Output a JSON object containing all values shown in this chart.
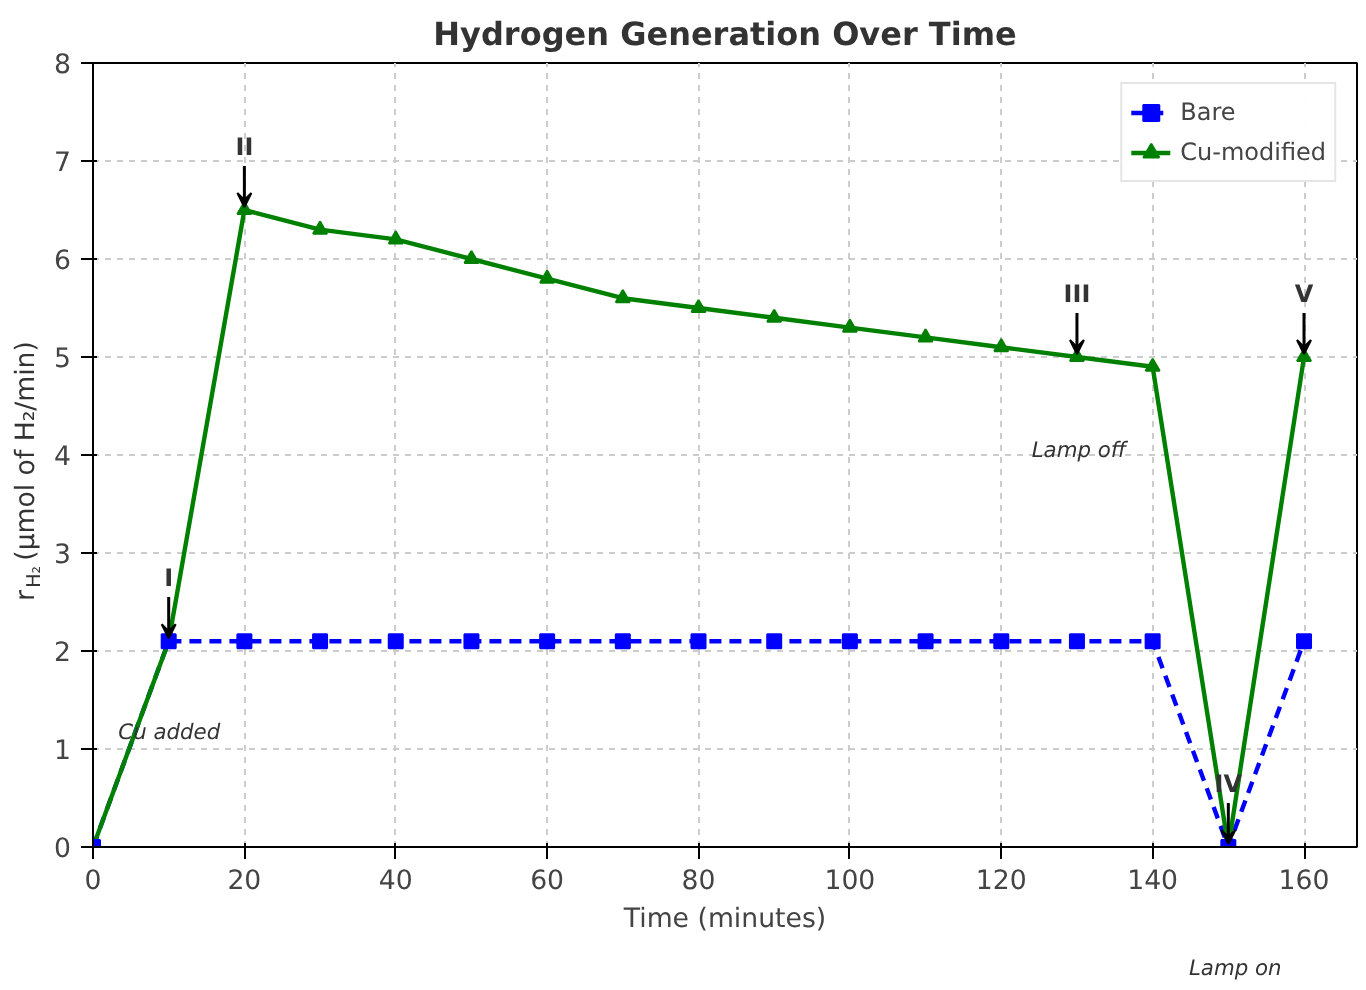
{
  "chart_data": {
    "type": "line",
    "title": "Hydrogen Generation Over Time",
    "xlabel": "Time (minutes)",
    "ylabel": "r$_{H₂}$ (μmol of H₂/min)",
    "x": [
      0,
      10,
      20,
      30,
      40,
      50,
      60,
      70,
      80,
      90,
      100,
      110,
      120,
      130,
      140,
      150,
      160
    ],
    "series": [
      {
        "name": "Bare",
        "color": "#0000ff",
        "marker": "square",
        "line_style": "dashed",
        "values": [
          0,
          2.1,
          2.1,
          2.1,
          2.1,
          2.1,
          2.1,
          2.1,
          2.1,
          2.1,
          2.1,
          2.1,
          2.1,
          2.1,
          2.1,
          0,
          2.1
        ]
      },
      {
        "name": "Cu-modified",
        "color": "#008000",
        "marker": "triangle",
        "line_style": "solid",
        "values": [
          0,
          2.1,
          6.5,
          6.3,
          6.2,
          6.0,
          5.8,
          5.6,
          5.5,
          5.4,
          5.3,
          5.2,
          5.1,
          5.0,
          4.9,
          0,
          5.0
        ]
      }
    ],
    "xlim": [
      0,
      167
    ],
    "ylim": [
      0,
      8
    ],
    "xticks": [
      0,
      20,
      40,
      60,
      80,
      100,
      120,
      140,
      160
    ],
    "yticks": [
      0,
      1,
      2,
      3,
      4,
      5,
      6,
      7,
      8
    ],
    "grid": true,
    "legend": "top right",
    "annotations": [
      {
        "text": "I",
        "x": 10,
        "y": 2.1
      },
      {
        "text": "II",
        "x": 20,
        "y": 6.5
      },
      {
        "text": "III",
        "x": 130,
        "y": 5.0
      },
      {
        "text": "IV",
        "x": 150,
        "y": 0
      },
      {
        "text": "V",
        "x": 160,
        "y": 5.0
      },
      "Cu added",
      "Lamp off",
      "Lamp on"
    ]
  }
}
